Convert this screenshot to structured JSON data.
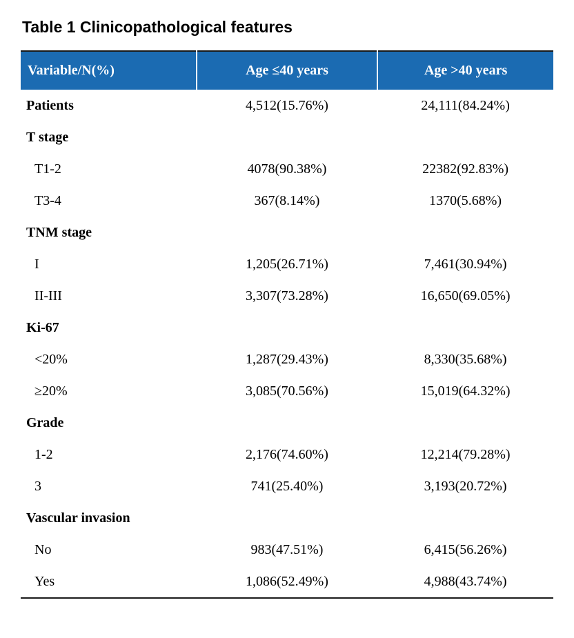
{
  "title": "Table 1 Clinicopathological features",
  "colors": {
    "header_background": "#1b6bb2",
    "header_text": "#ffffff",
    "body_text": "#000000",
    "rule": "#1a1a1a"
  },
  "table": {
    "header": {
      "col0": "Variable/N(%)",
      "col1": "Age ≤40 years",
      "col2": "Age >40 years"
    },
    "rows": [
      {
        "label": "Patients",
        "col1": "4,512(15.76%)",
        "col2": "24,111(84.24%)",
        "style": "bold"
      },
      {
        "label": "T stage",
        "col1": "",
        "col2": "",
        "style": "section"
      },
      {
        "label": "T1-2",
        "col1": "4078(90.38%)",
        "col2": "22382(92.83%)",
        "style": "item"
      },
      {
        "label": "T3-4",
        "col1": "367(8.14%)",
        "col2": "1370(5.68%)",
        "style": "item"
      },
      {
        "label": "TNM stage",
        "col1": "",
        "col2": "",
        "style": "section"
      },
      {
        "label": "I",
        "col1": "1,205(26.71%)",
        "col2": "7,461(30.94%)",
        "style": "item"
      },
      {
        "label": "II-III",
        "col1": "3,307(73.28%)",
        "col2": "16,650(69.05%)",
        "style": "item"
      },
      {
        "label": "Ki-67",
        "col1": "",
        "col2": "",
        "style": "section"
      },
      {
        "label": "<20%",
        "col1": "1,287(29.43%)",
        "col2": "8,330(35.68%)",
        "style": "item"
      },
      {
        "label": "≥20%",
        "col1": "3,085(70.56%)",
        "col2": "15,019(64.32%)",
        "style": "item"
      },
      {
        "label": "Grade",
        "col1": "",
        "col2": "",
        "style": "section"
      },
      {
        "label": "1-2",
        "col1": "2,176(74.60%)",
        "col2": "12,214(79.28%)",
        "style": "item"
      },
      {
        "label": "3",
        "col1": "741(25.40%)",
        "col2": "3,193(20.72%)",
        "style": "item"
      },
      {
        "label": "Vascular invasion",
        "col1": "",
        "col2": "",
        "style": "section"
      },
      {
        "label": "No",
        "col1": "983(47.51%)",
        "col2": "6,415(56.26%)",
        "style": "item"
      },
      {
        "label": "Yes",
        "col1": "1,086(52.49%)",
        "col2": "4,988(43.74%)",
        "style": "item"
      }
    ]
  }
}
